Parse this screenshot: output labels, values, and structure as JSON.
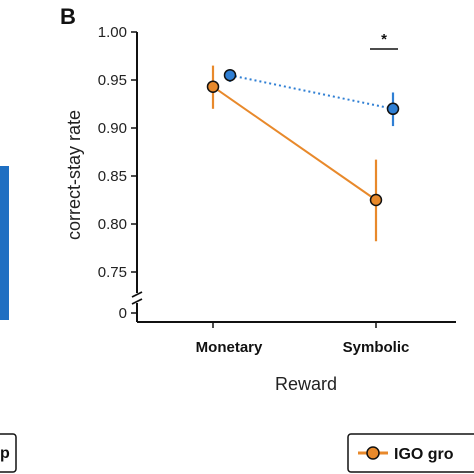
{
  "panel_letter": "B",
  "colors": {
    "orange": "#e8892b",
    "blue": "#2f7fd4",
    "bar_blue": "#1f6fc2",
    "axis": "#111111"
  },
  "legend_left_fragment": "p",
  "legend_right_fragment": "IGO gro",
  "chart_data": {
    "type": "line",
    "categories": [
      "Monetary",
      "Symbolic"
    ],
    "xlabel": "Reward",
    "ylabel": "correct-stay rate",
    "ylim": [
      0.75,
      1.0
    ],
    "y_ticks": [
      "1.00",
      "0.95",
      "0.90",
      "0.85",
      "0.80",
      "0.75"
    ],
    "y_zero_tick": "0",
    "y_axis_break": true,
    "grid": false,
    "series": [
      {
        "name": "IGO group",
        "color": "#e8892b",
        "linestyle": "solid",
        "values": [
          0.943,
          0.825
        ],
        "err_low": [
          0.92,
          0.782
        ],
        "err_high": [
          0.965,
          0.867
        ]
      },
      {
        "color": "#2f7fd4",
        "linestyle": "dotted",
        "values": [
          0.955,
          0.92
        ],
        "err_low": [
          0.948,
          0.902
        ],
        "err_high": [
          0.961,
          0.937
        ]
      }
    ],
    "annotations": [
      {
        "text": "*",
        "category": "Symbolic"
      }
    ]
  }
}
